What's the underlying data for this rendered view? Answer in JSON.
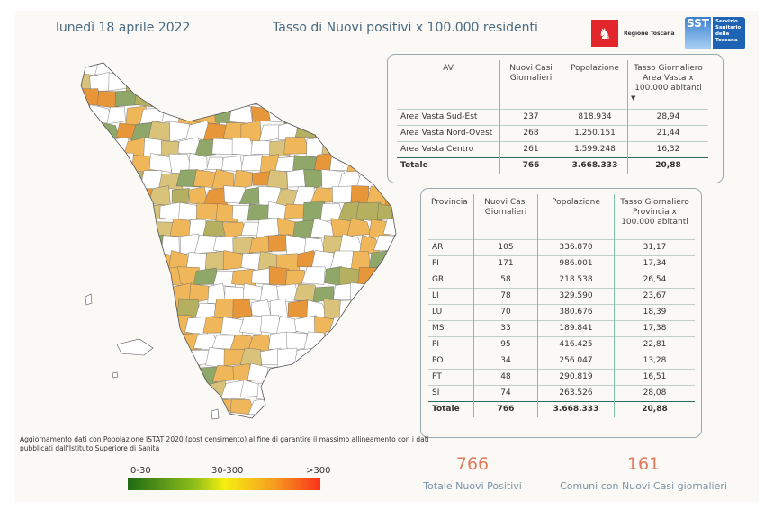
{
  "header": {
    "date": "lunedì 18 aprile 2022",
    "title": "Tasso di Nuovi positivi x 100.000 residenti"
  },
  "logos": {
    "regione": "Regione Toscana",
    "sst_short": "SST",
    "sst_full": "Servizio Sanitario della Toscana"
  },
  "av_table": {
    "columns": [
      "AV",
      "Nuovi Casi Giornalieri",
      "Popolazione",
      "Tasso Giornaliero Area Vasta x 100.000 abitanti"
    ],
    "sort_icon": "sort-descending-icon",
    "rows": [
      [
        "Area Vasta Sud-Est",
        "237",
        "818.934",
        "28,94"
      ],
      [
        "Area Vasta Nord-Ovest",
        "268",
        "1.250.151",
        "21,44"
      ],
      [
        "Area Vasta Centro",
        "261",
        "1.599.248",
        "16,32"
      ]
    ],
    "total": [
      "Totale",
      "766",
      "3.668.333",
      "20,88"
    ]
  },
  "prov_table": {
    "columns": [
      "Provincia",
      "Nuovi Casi Giornalieri",
      "Popolazione",
      "Tasso Giornaliero Provincia x 100.000 abitanti"
    ],
    "rows": [
      [
        "AR",
        "105",
        "336.870",
        "31,17"
      ],
      [
        "FI",
        "171",
        "986.001",
        "17,34"
      ],
      [
        "GR",
        "58",
        "218.538",
        "26,54"
      ],
      [
        "LI",
        "78",
        "329.590",
        "23,67"
      ],
      [
        "LU",
        "70",
        "380.676",
        "18,39"
      ],
      [
        "MS",
        "33",
        "189.841",
        "17,38"
      ],
      [
        "PI",
        "95",
        "416.425",
        "22,81"
      ],
      [
        "PO",
        "34",
        "256.047",
        "13,28"
      ],
      [
        "PT",
        "48",
        "290.819",
        "16,51"
      ],
      [
        "SI",
        "74",
        "263.526",
        "28,08"
      ]
    ],
    "total": [
      "Totale",
      "766",
      "3.668.333",
      "20,88"
    ]
  },
  "kpis": [
    {
      "value": "766",
      "label": "Totale Nuovi Positivi"
    },
    {
      "value": "161",
      "label": "Comuni con Nuovi Casi giornalieri"
    }
  ],
  "note": "Aggiornamento dati con Popolazione ISTAT 2020 (post censimento) al fine di garantire il massimo allineamento con i dati pubblicati dall'Istituto Superiore di Sanità",
  "legend": {
    "low": "0-30",
    "mid": "30-300",
    "high": ">300",
    "colors": [
      "#1e6b13",
      "#f5ef10",
      "#fa3219"
    ]
  },
  "map_colors": {
    "none": "#ffffff",
    "green": "#8fa86a",
    "olive": "#b5b060",
    "light": "#d9c27a",
    "orange": "#f0b65a",
    "dark_orange": "#e8963a"
  }
}
